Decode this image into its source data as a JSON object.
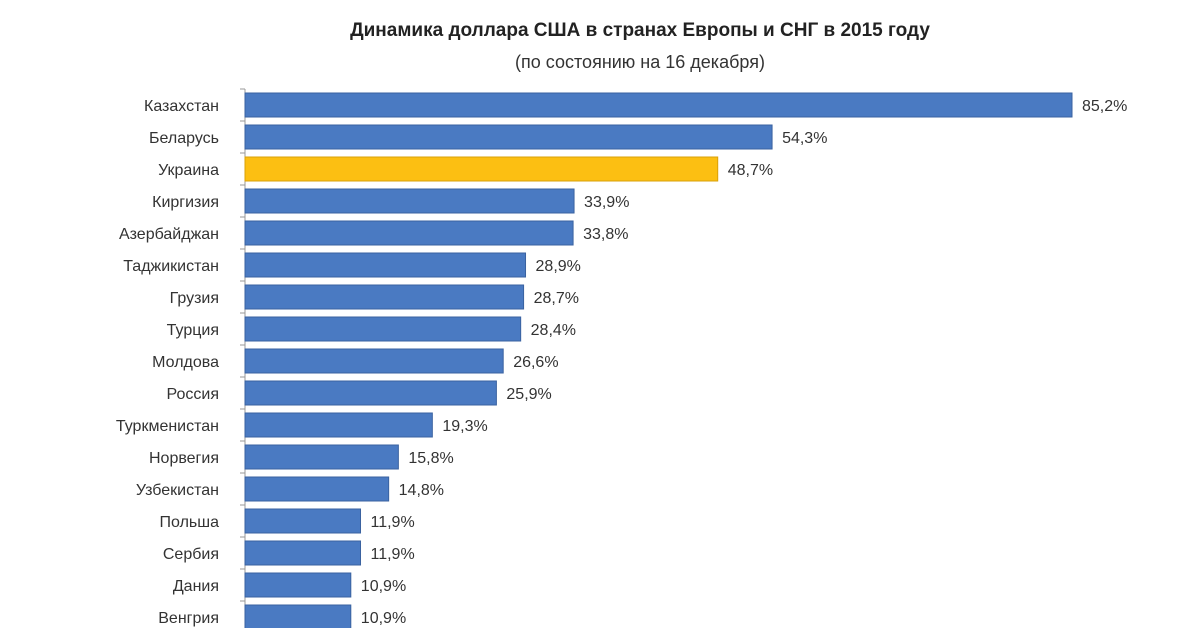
{
  "chart_data": {
    "type": "bar",
    "orientation": "horizontal",
    "title": "Динамика доллара США в странах Европы и СНГ в 2015 году",
    "subtitle": "(по состоянию на 16 декабря)",
    "xlabel": "",
    "ylabel": "",
    "xlim": [
      0,
      85.2
    ],
    "grid": false,
    "categories": [
      "Казахстан",
      "Беларусь",
      "Украина",
      "Киргизия",
      "Азербайджан",
      "Таджикистан",
      "Грузия",
      "Турция",
      "Молдова",
      "Россия",
      "Туркменистан",
      "Норвегия",
      "Узбекистан",
      "Польша",
      "Сербия",
      "Дания",
      "Венгрия"
    ],
    "values": [
      85.2,
      54.3,
      48.7,
      33.9,
      33.8,
      28.9,
      28.7,
      28.4,
      26.6,
      25.9,
      19.3,
      15.8,
      14.8,
      11.9,
      11.9,
      10.9,
      10.9
    ],
    "labels": [
      "85,2%",
      "54,3%",
      "48,7%",
      "33,9%",
      "33,8%",
      "28,9%",
      "28,7%",
      "28,4%",
      "26,6%",
      "25,9%",
      "19,3%",
      "15,8%",
      "14,8%",
      "11,9%",
      "11,9%",
      "10,9%",
      "10,9%"
    ],
    "highlight_index": 2,
    "colors": {
      "default": "#4a7ac2",
      "highlight": "#fcbf12",
      "border": "#3a62a0",
      "highlight_border": "#d9a00a"
    }
  }
}
